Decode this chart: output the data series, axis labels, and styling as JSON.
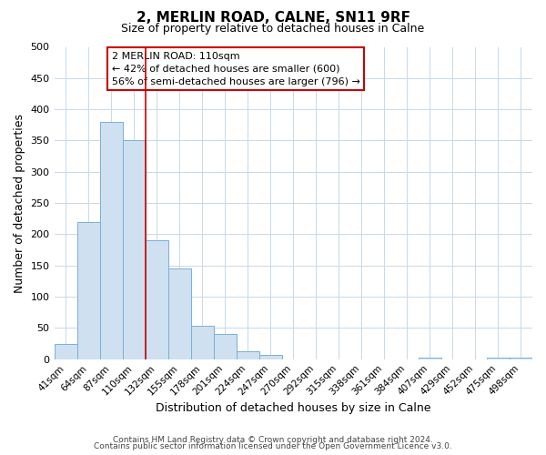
{
  "title": "2, MERLIN ROAD, CALNE, SN11 9RF",
  "subtitle": "Size of property relative to detached houses in Calne",
  "xlabel": "Distribution of detached houses by size in Calne",
  "ylabel": "Number of detached properties",
  "bar_labels": [
    "41sqm",
    "64sqm",
    "87sqm",
    "110sqm",
    "132sqm",
    "155sqm",
    "178sqm",
    "201sqm",
    "224sqm",
    "247sqm",
    "270sqm",
    "292sqm",
    "315sqm",
    "338sqm",
    "361sqm",
    "384sqm",
    "407sqm",
    "429sqm",
    "452sqm",
    "475sqm",
    "498sqm"
  ],
  "bar_values": [
    25,
    220,
    380,
    350,
    190,
    145,
    53,
    40,
    13,
    7,
    0,
    0,
    0,
    0,
    0,
    0,
    2,
    0,
    0,
    2,
    2
  ],
  "bar_color": "#cfe0f0",
  "bar_edge_color": "#7ab0d4",
  "vline_x_index": 3,
  "vline_color": "#cc0000",
  "ylim": [
    0,
    500
  ],
  "yticks": [
    0,
    50,
    100,
    150,
    200,
    250,
    300,
    350,
    400,
    450,
    500
  ],
  "annotation_title": "2 MERLIN ROAD: 110sqm",
  "annotation_line1": "← 42% of detached houses are smaller (600)",
  "annotation_line2": "56% of semi-detached houses are larger (796) →",
  "annotation_box_color": "#ffffff",
  "annotation_box_edge": "#cc0000",
  "footer_line1": "Contains HM Land Registry data © Crown copyright and database right 2024.",
  "footer_line2": "Contains public sector information licensed under the Open Government Licence v3.0.",
  "background_color": "#ffffff",
  "grid_color": "#c8d8ea"
}
